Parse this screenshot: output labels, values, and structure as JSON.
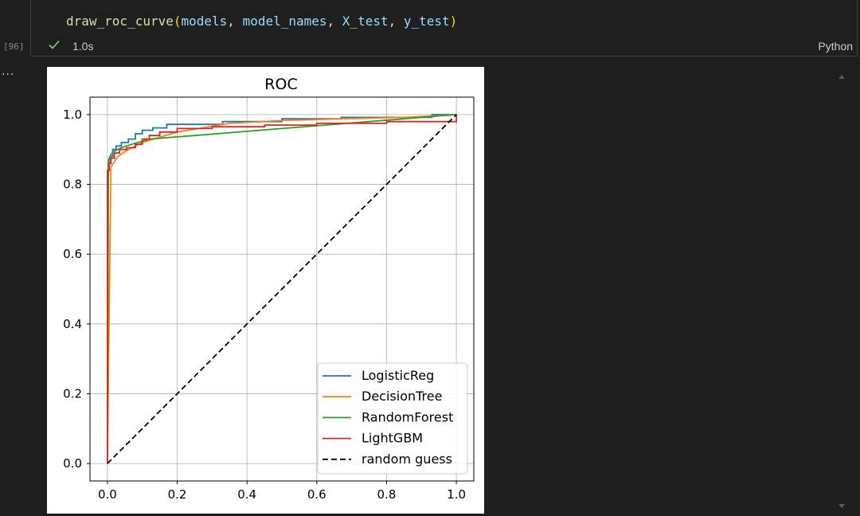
{
  "cell": {
    "code": {
      "fn": "draw_roc_curve",
      "args": [
        "models",
        "model_names",
        "X_test",
        "y_test"
      ]
    },
    "execution_count": "[96]",
    "status_time": "1.0s",
    "language": "Python",
    "output_ellipsis": "..."
  },
  "colors": {
    "LogisticReg": "#1f77b4",
    "DecisionTree": "#ff7f0e",
    "RandomForest": "#2ca02c",
    "LightGBM": "#d62728",
    "random guess": "#000000"
  },
  "chart_data": {
    "type": "line",
    "title": "ROC",
    "xlabel": "",
    "ylabel": "",
    "xlim": [
      -0.05,
      1.05
    ],
    "ylim": [
      -0.05,
      1.05
    ],
    "xticks": [
      "0.0",
      "0.2",
      "0.4",
      "0.6",
      "0.8",
      "1.0"
    ],
    "yticks": [
      "0.0",
      "0.2",
      "0.4",
      "0.6",
      "0.8",
      "1.0"
    ],
    "grid": true,
    "legend_position": "lower-right",
    "series": [
      {
        "name": "LogisticReg",
        "style": "step",
        "x": [
          0,
          0,
          0.003,
          0.003,
          0.008,
          0.008,
          0.015,
          0.015,
          0.025,
          0.025,
          0.04,
          0.04,
          0.06,
          0.06,
          0.08,
          0.08,
          0.1,
          0.1,
          0.13,
          0.13,
          0.17,
          0.17,
          0.33,
          0.33,
          0.5,
          0.5,
          0.67,
          0.67,
          0.93,
          0.93,
          1.0,
          1.0
        ],
        "y": [
          0,
          0.83,
          0.83,
          0.86,
          0.86,
          0.88,
          0.88,
          0.9,
          0.9,
          0.91,
          0.91,
          0.92,
          0.92,
          0.93,
          0.93,
          0.945,
          0.945,
          0.955,
          0.955,
          0.962,
          0.962,
          0.972,
          0.972,
          0.98,
          0.98,
          0.988,
          0.988,
          0.992,
          0.992,
          1.0,
          1.0,
          1.0
        ]
      },
      {
        "name": "DecisionTree",
        "style": "line",
        "x": [
          0,
          0.01,
          0.03,
          0.06,
          0.1,
          0.2,
          0.35,
          0.5,
          0.67,
          0.85,
          1.0
        ],
        "y": [
          0,
          0.85,
          0.88,
          0.9,
          0.92,
          0.95,
          0.975,
          0.983,
          0.988,
          0.992,
          1.0
        ]
      },
      {
        "name": "RandomForest",
        "style": "line",
        "x": [
          0,
          0.003,
          0.01,
          0.02,
          0.04,
          0.07,
          0.12,
          0.25,
          0.5,
          0.75,
          1.0
        ],
        "y": [
          0,
          0.87,
          0.885,
          0.895,
          0.905,
          0.915,
          0.93,
          0.94,
          0.96,
          0.98,
          1.0
        ]
      },
      {
        "name": "LightGBM",
        "style": "step",
        "x": [
          0,
          0,
          0.005,
          0.005,
          0.01,
          0.01,
          0.02,
          0.02,
          0.035,
          0.035,
          0.055,
          0.055,
          0.08,
          0.08,
          0.1,
          0.1,
          0.12,
          0.12,
          0.15,
          0.15,
          0.2,
          0.2,
          0.3,
          0.3,
          0.45,
          0.45,
          0.6,
          0.6,
          0.8,
          0.8,
          0.97,
          0.97,
          1.0,
          1.0
        ],
        "y": [
          0,
          0.84,
          0.84,
          0.86,
          0.86,
          0.875,
          0.875,
          0.89,
          0.89,
          0.9,
          0.9,
          0.905,
          0.905,
          0.915,
          0.915,
          0.93,
          0.93,
          0.94,
          0.94,
          0.95,
          0.95,
          0.96,
          0.96,
          0.965,
          0.965,
          0.97,
          0.97,
          0.975,
          0.975,
          0.98,
          0.98,
          0.98,
          0.98,
          1.0
        ]
      },
      {
        "name": "random guess",
        "style": "dashed",
        "x": [
          0,
          1
        ],
        "y": [
          0,
          1
        ]
      }
    ]
  }
}
